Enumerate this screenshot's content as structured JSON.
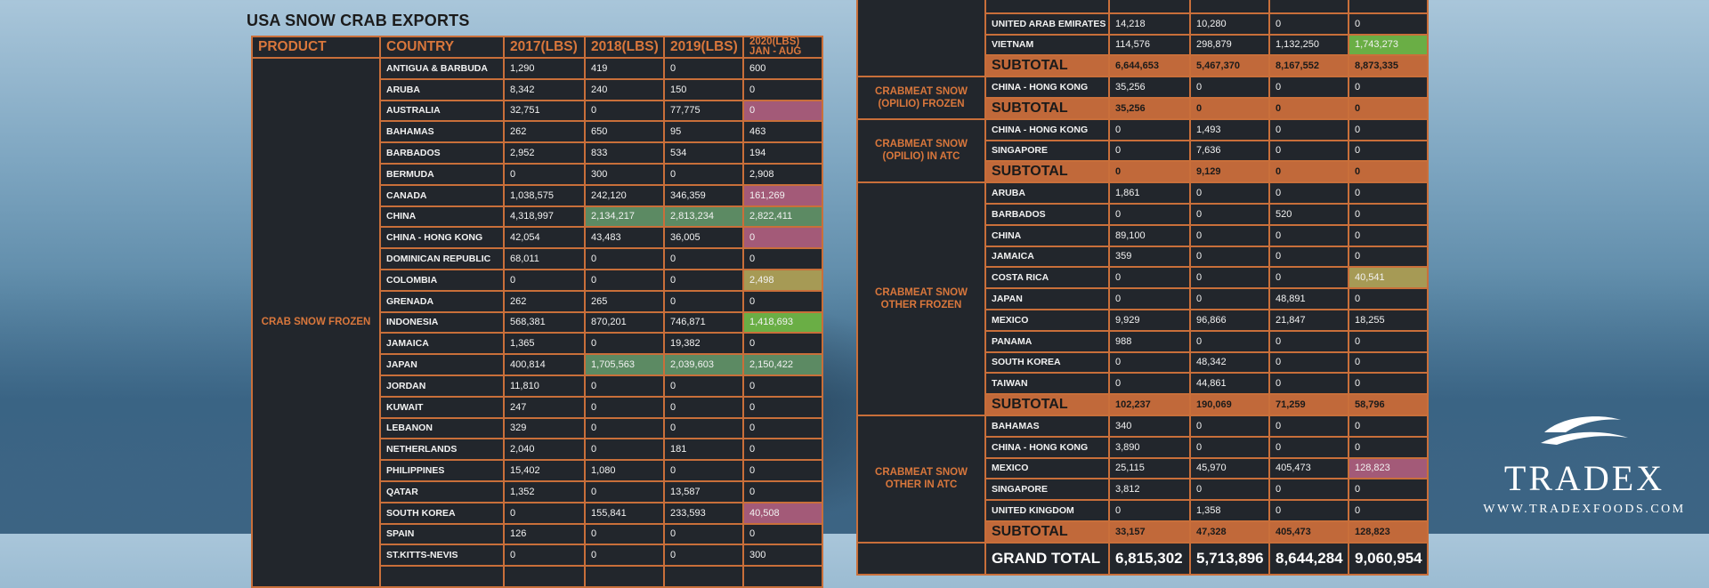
{
  "title": "USA SNOW CRAB EXPORTS",
  "headers": [
    "PRODUCT",
    "COUNTRY",
    "2017(LBS)",
    "2018(LBS)",
    "2019(LBS)",
    "2020(LBS)",
    "JAN - AUG"
  ],
  "left_group": {
    "product": "CRAB SNOW FROZEN",
    "rows": [
      {
        "country": "ANTIGUA & BARBUDA",
        "v": [
          "1,290",
          "419",
          "0",
          "600"
        ]
      },
      {
        "country": "ARUBA",
        "v": [
          "8,342",
          "240",
          "150",
          "0"
        ]
      },
      {
        "country": "AUSTRALIA",
        "v": [
          "32,751",
          "0",
          "77,775",
          "0"
        ]
      },
      {
        "country": "BAHAMAS",
        "v": [
          "262",
          "650",
          "95",
          "463"
        ]
      },
      {
        "country": "BARBADOS",
        "v": [
          "2,952",
          "833",
          "534",
          "194"
        ]
      },
      {
        "country": "BERMUDA",
        "v": [
          "0",
          "300",
          "0",
          "2,908"
        ]
      },
      {
        "country": "CANADA",
        "v": [
          "1,038,575",
          "242,120",
          "346,359",
          "161,269"
        ]
      },
      {
        "country": "CHINA",
        "v": [
          "4,318,997",
          "2,134,217",
          "2,813,234",
          "2,822,411"
        ]
      },
      {
        "country": "CHINA - HONG KONG",
        "v": [
          "42,054",
          "43,483",
          "36,005",
          "0"
        ]
      },
      {
        "country": "DOMINICAN REPUBLIC",
        "v": [
          "68,011",
          "0",
          "0",
          "0"
        ]
      },
      {
        "country": "COLOMBIA",
        "v": [
          "0",
          "0",
          "0",
          "2,498"
        ]
      },
      {
        "country": "GRENADA",
        "v": [
          "262",
          "265",
          "0",
          "0"
        ]
      },
      {
        "country": "INDONESIA",
        "v": [
          "568,381",
          "870,201",
          "746,871",
          "1,418,693"
        ]
      },
      {
        "country": "JAMAICA",
        "v": [
          "1,365",
          "0",
          "19,382",
          "0"
        ]
      },
      {
        "country": "JAPAN",
        "v": [
          "400,814",
          "1,705,563",
          "2,039,603",
          "2,150,422"
        ]
      },
      {
        "country": "JORDAN",
        "v": [
          "11,810",
          "0",
          "0",
          "0"
        ]
      },
      {
        "country": "KUWAIT",
        "v": [
          "247",
          "0",
          "0",
          "0"
        ]
      },
      {
        "country": "LEBANON",
        "v": [
          "329",
          "0",
          "0",
          "0"
        ]
      },
      {
        "country": "NETHERLANDS",
        "v": [
          "2,040",
          "0",
          "181",
          "0"
        ]
      },
      {
        "country": "PHILIPPINES",
        "v": [
          "15,402",
          "1,080",
          "0",
          "0"
        ]
      },
      {
        "country": "QATAR",
        "v": [
          "1,352",
          "0",
          "13,587",
          "0"
        ]
      },
      {
        "country": "SOUTH KOREA",
        "v": [
          "0",
          "155,841",
          "233,593",
          "40,508"
        ]
      },
      {
        "country": "SPAIN",
        "v": [
          "126",
          "0",
          "0",
          "0"
        ]
      },
      {
        "country": "ST.KITTS-NEVIS",
        "v": [
          "0",
          "0",
          "0",
          "300"
        ]
      }
    ]
  },
  "right_top_rows": [
    {
      "country": "UNITED ARAB EMIRATES",
      "v": [
        "14,218",
        "10,280",
        "0",
        "0"
      ]
    },
    {
      "country": "VIETNAM",
      "v": [
        "114,576",
        "298,879",
        "1,132,250",
        "1,743,273"
      ]
    }
  ],
  "subtotal_label": "SUBTOTAL",
  "subtotal_crab_snow_frozen": [
    "6,644,653",
    "5,467,370",
    "8,167,552",
    "8,873,335"
  ],
  "groups": [
    {
      "product": "CRABMEAT SNOW (OPILIO) FROZEN",
      "rows": [
        {
          "country": "CHINA - HONG KONG",
          "v": [
            "35,256",
            "0",
            "0",
            "0"
          ]
        }
      ],
      "subtotal": [
        "35,256",
        "0",
        "0",
        "0"
      ]
    },
    {
      "product": "CRABMEAT SNOW (OPILIO) IN ATC",
      "rows": [
        {
          "country": "CHINA - HONG KONG",
          "v": [
            "0",
            "1,493",
            "0",
            "0"
          ]
        },
        {
          "country": "SINGAPORE",
          "v": [
            "0",
            "7,636",
            "0",
            "0"
          ]
        }
      ],
      "subtotal": [
        "0",
        "9,129",
        "0",
        "0"
      ]
    },
    {
      "product": "CRABMEAT SNOW OTHER FROZEN",
      "rows": [
        {
          "country": "ARUBA",
          "v": [
            "1,861",
            "0",
            "0",
            "0"
          ]
        },
        {
          "country": "BARBADOS",
          "v": [
            "0",
            "0",
            "520",
            "0"
          ]
        },
        {
          "country": "CHINA",
          "v": [
            "89,100",
            "0",
            "0",
            "0"
          ]
        },
        {
          "country": "JAMAICA",
          "v": [
            "359",
            "0",
            "0",
            "0"
          ]
        },
        {
          "country": "COSTA RICA",
          "v": [
            "0",
            "0",
            "0",
            "40,541"
          ]
        },
        {
          "country": "JAPAN",
          "v": [
            "0",
            "0",
            "48,891",
            "0"
          ]
        },
        {
          "country": "MEXICO",
          "v": [
            "9,929",
            "96,866",
            "21,847",
            "18,255"
          ]
        },
        {
          "country": "PANAMA",
          "v": [
            "988",
            "0",
            "0",
            "0"
          ]
        },
        {
          "country": "SOUTH KOREA",
          "v": [
            "0",
            "48,342",
            "0",
            "0"
          ]
        },
        {
          "country": "TAIWAN",
          "v": [
            "0",
            "44,861",
            "0",
            "0"
          ]
        }
      ],
      "subtotal": [
        "102,237",
        "190,069",
        "71,259",
        "58,796"
      ]
    },
    {
      "product": "CRABMEAT SNOW OTHER IN ATC",
      "rows": [
        {
          "country": "BAHAMAS",
          "v": [
            "340",
            "0",
            "0",
            "0"
          ]
        },
        {
          "country": "CHINA - HONG KONG",
          "v": [
            "3,890",
            "0",
            "0",
            "0"
          ]
        },
        {
          "country": "MEXICO",
          "v": [
            "25,115",
            "45,970",
            "405,473",
            "128,823"
          ]
        },
        {
          "country": "SINGAPORE",
          "v": [
            "3,812",
            "0",
            "0",
            "0"
          ]
        },
        {
          "country": "UNITED KINGDOM",
          "v": [
            "0",
            "1,358",
            "0",
            "0"
          ]
        }
      ],
      "subtotal": [
        "33,157",
        "47,328",
        "405,473",
        "128,823"
      ]
    }
  ],
  "grand_total_label": "GRAND TOTAL",
  "grand_total": [
    "6,815,302",
    "5,713,896",
    "8,644,284",
    "9,060,954"
  ],
  "colors": {
    "border": "#c96f3a",
    "header_text": "#d9773c",
    "pink": "#a35a78",
    "green": "#5c8a63",
    "lime": "#6aae45",
    "olive": "#a69a55"
  },
  "logo": {
    "wordmark": "TRADEX",
    "url": "WWW.TRADEXFOODS.COM"
  }
}
